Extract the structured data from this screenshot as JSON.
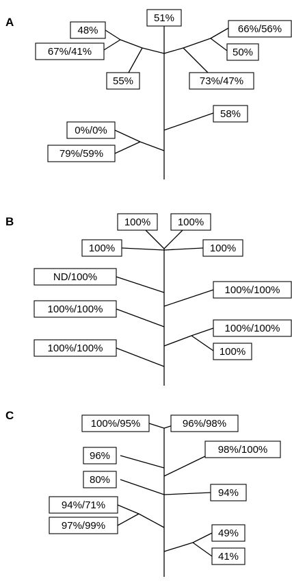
{
  "panels": [
    {
      "letter": "A",
      "labels": [
        "51%",
        "48%",
        "67%/41%",
        "55%",
        "66%/56%",
        "50%",
        "73%/47%",
        "58%",
        "0%/0%",
        "79%/59%"
      ]
    },
    {
      "letter": "B",
      "labels": [
        "100%",
        "100%",
        "100%",
        "100%",
        "ND/100%",
        "100%/100%",
        "100%/100%",
        "100%/100%",
        "100%/100%",
        "100%"
      ]
    },
    {
      "letter": "C",
      "labels": [
        "100%/95%",
        "96%/98%",
        "96%",
        "98%/100%",
        "80%",
        "94%",
        "94%/71%",
        "97%/99%",
        "49%",
        "41%"
      ]
    }
  ]
}
